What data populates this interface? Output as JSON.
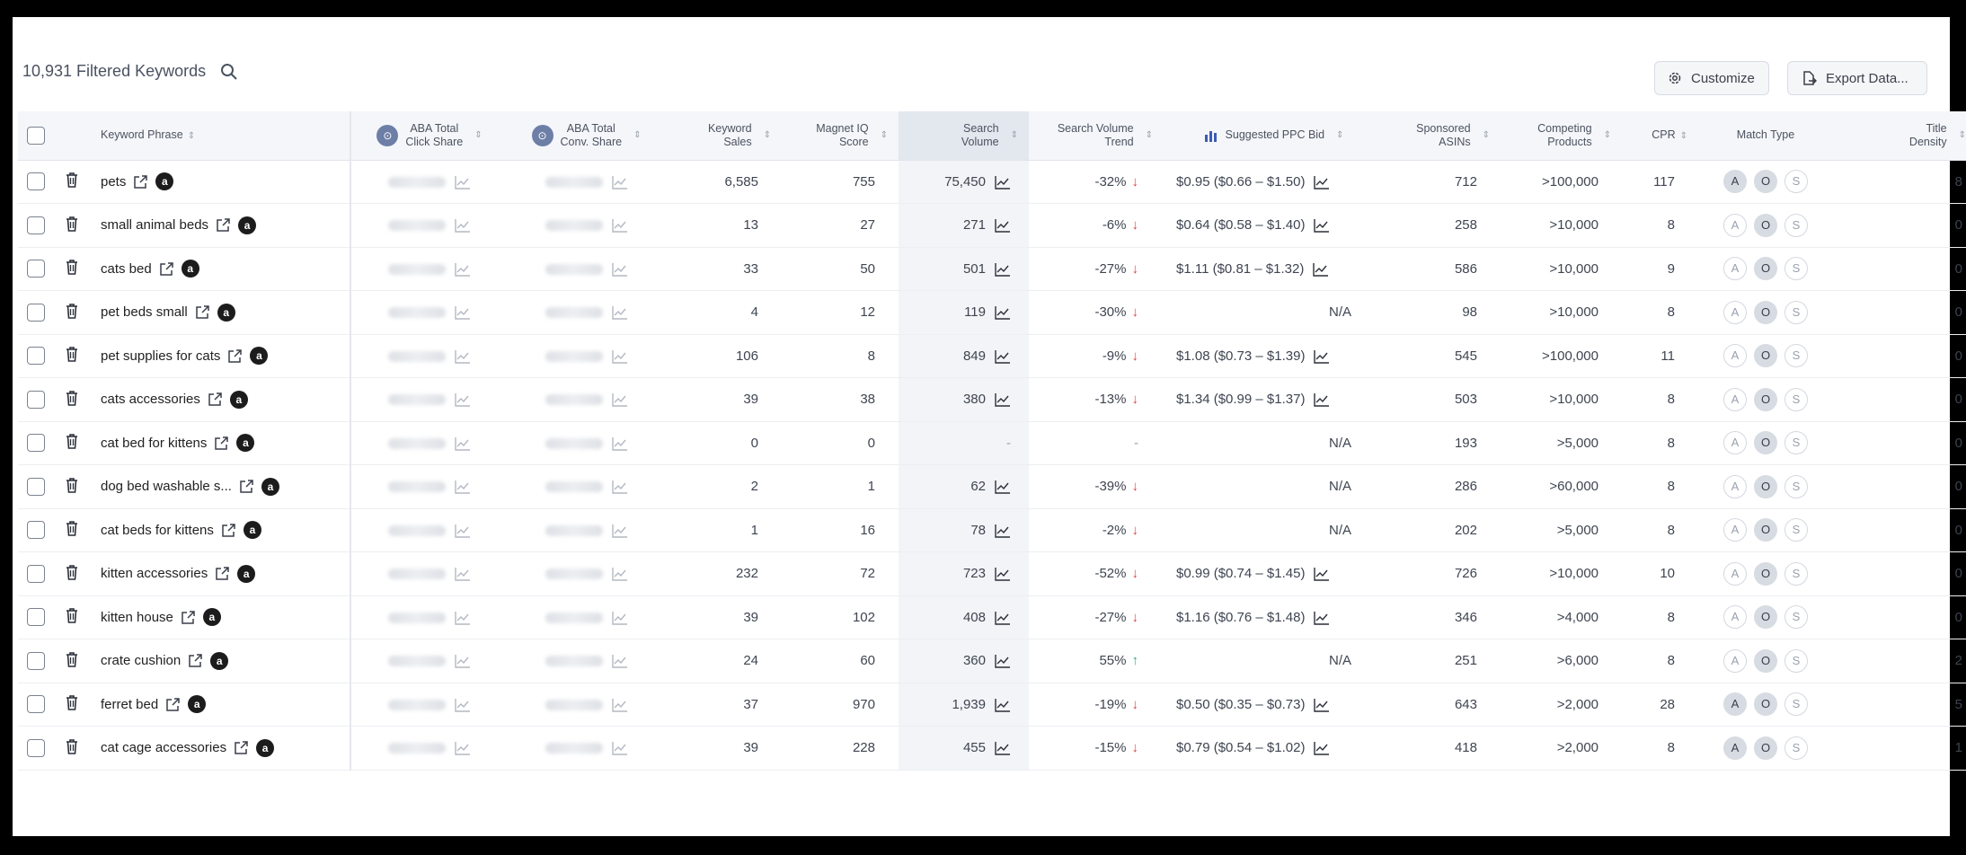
{
  "header": {
    "filtered_count": "10,931 Filtered Keywords",
    "customize_label": "Customize",
    "export_label": "Export Data..."
  },
  "columns": {
    "keyword_phrase": "Keyword Phrase",
    "aba_click_1": "ABA Total",
    "aba_click_2": "Click Share",
    "aba_conv_1": "ABA Total",
    "aba_conv_2": "Conv. Share",
    "kw_sales_1": "Keyword",
    "kw_sales_2": "Sales",
    "miq_1": "Magnet IQ",
    "miq_2": "Score",
    "sv_1": "Search",
    "sv_2": "Volume",
    "svt_1": "Search Volume",
    "svt_2": "Trend",
    "ppc": "Suggested PPC Bid",
    "spon_1": "Sponsored",
    "spon_2": "ASINs",
    "comp_1": "Competing",
    "comp_2": "Products",
    "cpr": "CPR",
    "match": "Match Type",
    "title_1": "Title",
    "title_2": "Density"
  },
  "icons": {
    "search": "search-icon",
    "gear": "gear-icon",
    "export": "export-icon",
    "trash": "trash-icon",
    "external": "external-link-icon",
    "amazon": "amazon-icon",
    "chart": "trend-chart-icon"
  },
  "colors": {
    "down": "#e0443a",
    "up": "#2fae7e",
    "header_bg": "#f4f6f9",
    "sv_bg": "#f2f4f7"
  },
  "match_labels": [
    "A",
    "O",
    "S"
  ],
  "rows": [
    {
      "keyword": "pets",
      "sales": "6,585",
      "miq": "755",
      "sv": "75,450",
      "trend": "-32%",
      "dir": "down",
      "ppc": "$0.95 ($0.66 – $1.50)",
      "spon": "712",
      "comp": ">100,000",
      "cpr": "117",
      "match": [
        true,
        true,
        false
      ],
      "title": "8"
    },
    {
      "keyword": "small animal beds",
      "sales": "13",
      "miq": "27",
      "sv": "271",
      "trend": "-6%",
      "dir": "down",
      "ppc": "$0.64 ($0.58 – $1.40)",
      "spon": "258",
      "comp": ">10,000",
      "cpr": "8",
      "match": [
        false,
        true,
        false
      ],
      "title": "0"
    },
    {
      "keyword": "cats bed",
      "sales": "33",
      "miq": "50",
      "sv": "501",
      "trend": "-27%",
      "dir": "down",
      "ppc": "$1.11 ($0.81 – $1.32)",
      "spon": "586",
      "comp": ">10,000",
      "cpr": "9",
      "match": [
        false,
        true,
        false
      ],
      "title": "0"
    },
    {
      "keyword": "pet beds small",
      "sales": "4",
      "miq": "12",
      "sv": "119",
      "trend": "-30%",
      "dir": "down",
      "ppc": "N/A",
      "spon": "98",
      "comp": ">10,000",
      "cpr": "8",
      "match": [
        false,
        true,
        false
      ],
      "title": "0"
    },
    {
      "keyword": "pet supplies for cats",
      "sales": "106",
      "miq": "8",
      "sv": "849",
      "trend": "-9%",
      "dir": "down",
      "ppc": "$1.08 ($0.73 – $1.39)",
      "spon": "545",
      "comp": ">100,000",
      "cpr": "11",
      "match": [
        false,
        true,
        false
      ],
      "title": "0"
    },
    {
      "keyword": "cats accessories",
      "sales": "39",
      "miq": "38",
      "sv": "380",
      "trend": "-13%",
      "dir": "down",
      "ppc": "$1.34 ($0.99 – $1.37)",
      "spon": "503",
      "comp": ">10,000",
      "cpr": "8",
      "match": [
        false,
        true,
        false
      ],
      "title": "0"
    },
    {
      "keyword": "cat bed for kittens",
      "sales": "0",
      "miq": "0",
      "sv": "-",
      "trend": "-",
      "dir": "",
      "ppc": "N/A",
      "spon": "193",
      "comp": ">5,000",
      "cpr": "8",
      "match": [
        false,
        true,
        false
      ],
      "title": "0"
    },
    {
      "keyword": "dog bed washable s...",
      "sales": "2",
      "miq": "1",
      "sv": "62",
      "trend": "-39%",
      "dir": "down",
      "ppc": "N/A",
      "spon": "286",
      "comp": ">60,000",
      "cpr": "8",
      "match": [
        false,
        true,
        false
      ],
      "title": "0"
    },
    {
      "keyword": "cat beds for kittens",
      "sales": "1",
      "miq": "16",
      "sv": "78",
      "trend": "-2%",
      "dir": "down",
      "ppc": "N/A",
      "spon": "202",
      "comp": ">5,000",
      "cpr": "8",
      "match": [
        false,
        true,
        false
      ],
      "title": "0"
    },
    {
      "keyword": "kitten accessories",
      "sales": "232",
      "miq": "72",
      "sv": "723",
      "trend": "-52%",
      "dir": "down",
      "ppc": "$0.99 ($0.74 – $1.45)",
      "spon": "726",
      "comp": ">10,000",
      "cpr": "10",
      "match": [
        false,
        true,
        false
      ],
      "title": "0"
    },
    {
      "keyword": "kitten house",
      "sales": "39",
      "miq": "102",
      "sv": "408",
      "trend": "-27%",
      "dir": "down",
      "ppc": "$1.16 ($0.76 – $1.48)",
      "spon": "346",
      "comp": ">4,000",
      "cpr": "8",
      "match": [
        false,
        true,
        false
      ],
      "title": "0"
    },
    {
      "keyword": "crate cushion",
      "sales": "24",
      "miq": "60",
      "sv": "360",
      "trend": "55%",
      "dir": "up",
      "ppc": "N/A",
      "spon": "251",
      "comp": ">6,000",
      "cpr": "8",
      "match": [
        false,
        true,
        false
      ],
      "title": "2"
    },
    {
      "keyword": "ferret bed",
      "sales": "37",
      "miq": "970",
      "sv": "1,939",
      "trend": "-19%",
      "dir": "down",
      "ppc": "$0.50 ($0.35 – $0.73)",
      "spon": "643",
      "comp": ">2,000",
      "cpr": "28",
      "match": [
        true,
        true,
        false
      ],
      "title": "5"
    },
    {
      "keyword": "cat cage accessories",
      "sales": "39",
      "miq": "228",
      "sv": "455",
      "trend": "-15%",
      "dir": "down",
      "ppc": "$0.79 ($0.54 – $1.02)",
      "spon": "418",
      "comp": ">2,000",
      "cpr": "8",
      "match": [
        true,
        true,
        false
      ],
      "title": "1"
    }
  ]
}
